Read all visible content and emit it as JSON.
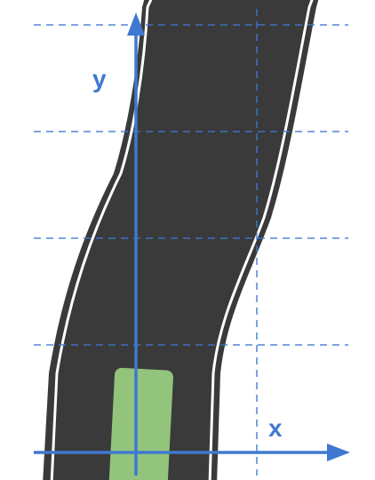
{
  "labels": {
    "x_axis": "x",
    "y_axis": "y"
  },
  "colors": {
    "background": "#ffffff",
    "road": "#3a3a3a",
    "lane_line": "#ffffff",
    "vehicle": "#92c47c",
    "axis": "#3f78d0",
    "grid": "#3f78d0",
    "label": "#3f78d0"
  },
  "icons": {
    "vehicle": "vehicle-icon",
    "x_arrow": "arrowhead-right-icon",
    "y_arrow": "arrowhead-up-icon"
  }
}
